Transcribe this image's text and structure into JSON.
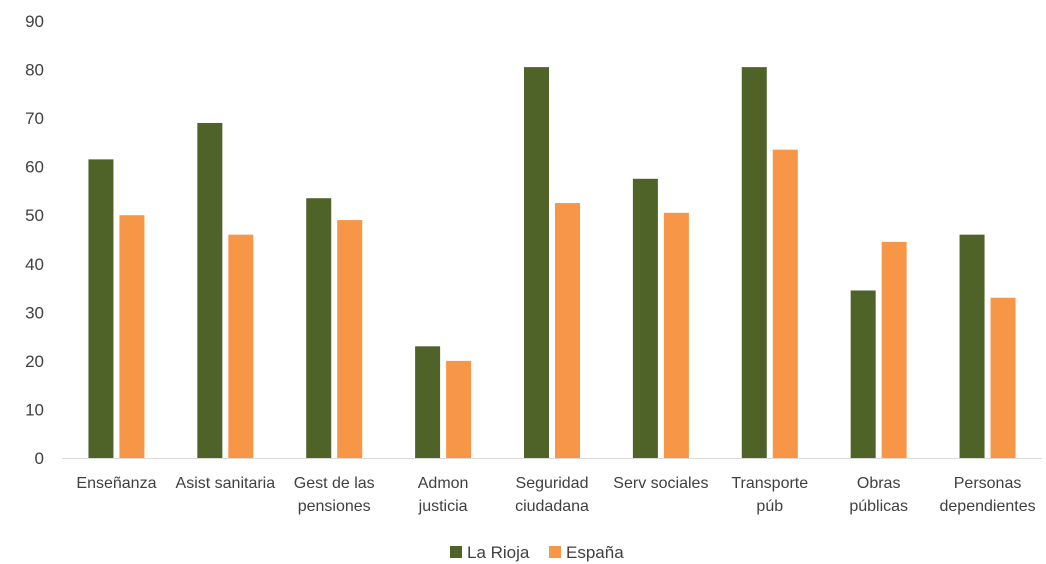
{
  "chart_data": {
    "type": "bar",
    "categories": [
      [
        "Enseñanza"
      ],
      [
        "Asist sanitaria"
      ],
      [
        "Gest de las",
        "pensiones"
      ],
      [
        "Admon",
        "justicia"
      ],
      [
        "Seguridad",
        "ciudadana"
      ],
      [
        "Serv sociales"
      ],
      [
        "Transporte",
        "púb"
      ],
      [
        "Obras",
        "públicas"
      ],
      [
        "Personas",
        "dependientes"
      ]
    ],
    "series": [
      {
        "name": "La Rioja",
        "color": "#4f6228",
        "values": [
          61.5,
          69,
          53.5,
          23,
          80.5,
          57.5,
          80.5,
          34.5,
          46
        ]
      },
      {
        "name": "España",
        "color": "#f79646",
        "values": [
          50,
          46,
          49,
          20,
          52.5,
          50.5,
          63.5,
          44.5,
          33
        ]
      }
    ],
    "ylim": [
      0,
      90
    ],
    "yticks": [
      0,
      10,
      20,
      30,
      40,
      50,
      60,
      70,
      80,
      90
    ],
    "grid": false,
    "legend_position": "bottom"
  }
}
